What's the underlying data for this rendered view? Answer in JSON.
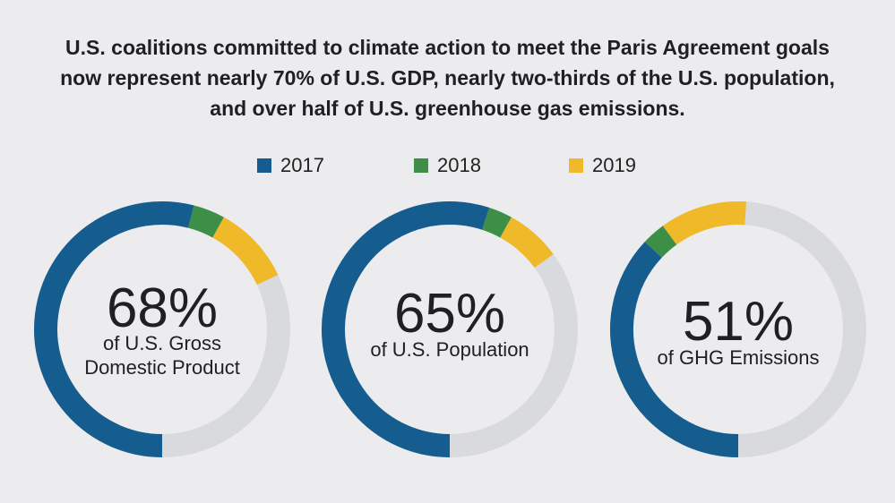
{
  "title_lines": [
    "U.S. coalitions committed to climate action to meet the Paris Agreement goals",
    "now represent nearly 70% of U.S. GDP, nearly two-thirds of the U.S. population,",
    "and over half of U.S. greenhouse gas emissions."
  ],
  "colors": {
    "y2017": "#155c8f",
    "y2018": "#3d8f47",
    "y2019": "#f0b92a",
    "track": "#d9dadd"
  },
  "chart_data": {
    "type": "donut",
    "legend": [
      {
        "label": "2017",
        "color": "#155c8f"
      },
      {
        "label": "2018",
        "color": "#3d8f47"
      },
      {
        "label": "2019",
        "color": "#f0b92a"
      }
    ],
    "charts": [
      {
        "value_label": "68%",
        "caption": [
          "of U.S. Gross",
          "Domestic Product"
        ],
        "segments": [
          {
            "year": "2017",
            "value": 54
          },
          {
            "year": "2018",
            "value": 4
          },
          {
            "year": "2019",
            "value": 10
          }
        ],
        "total": 68
      },
      {
        "value_label": "65%",
        "caption": [
          "of U.S. Population"
        ],
        "segments": [
          {
            "year": "2017",
            "value": 55
          },
          {
            "year": "2018",
            "value": 3
          },
          {
            "year": "2019",
            "value": 7
          }
        ],
        "total": 65
      },
      {
        "value_label": "51%",
        "caption": [
          "of GHG Emissions"
        ],
        "segments": [
          {
            "year": "2017",
            "value": 37
          },
          {
            "year": "2018",
            "value": 3
          },
          {
            "year": "2019",
            "value": 11
          }
        ],
        "total": 51
      }
    ]
  }
}
